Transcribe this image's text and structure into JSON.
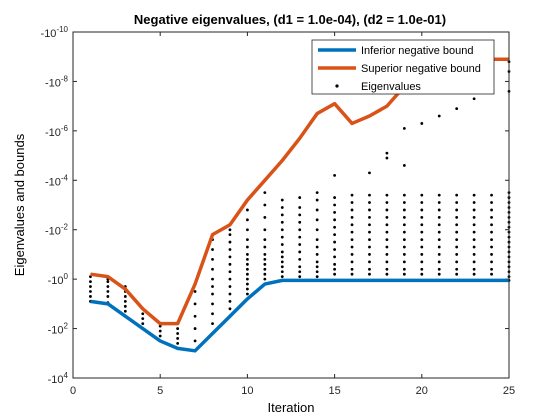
{
  "chart_data": {
    "type": "scatter",
    "title": "Negative eigenvalues, (d1 = 1.0e-04), (d2 = 1.0e-01)",
    "xlabel": "Iteration",
    "ylabel": "Eigenvalues and bounds",
    "xlim": [
      0,
      25
    ],
    "xticks": [
      0,
      5,
      10,
      15,
      20,
      25
    ],
    "xtick_labels": [
      "0",
      "5",
      "10",
      "15",
      "20",
      "25"
    ],
    "y_scale": "log10 of magnitude, negative values, axis reversed",
    "ylim_log10": [
      -10,
      4
    ],
    "yticks_log10": [
      -10,
      -8,
      -6,
      -4,
      -2,
      0,
      2,
      4
    ],
    "ytick_bases": [
      "-10",
      "-10",
      "-10",
      "-10",
      "-10",
      "-10",
      "-10",
      "-10"
    ],
    "ytick_exps": [
      "-10",
      "-8",
      "-6",
      "-4",
      "-2",
      "0",
      "2",
      "4"
    ],
    "legend_position": "top-right",
    "legend": {
      "inferior": "Inferior negative bound",
      "superior": "Superior negative bound",
      "eigen": "Eigenvalues"
    },
    "colors": {
      "inferior": "#0072BD",
      "superior": "#D95319",
      "eigen": "#000000",
      "axis": "#262626"
    },
    "x": [
      1,
      2,
      3,
      4,
      5,
      6,
      7,
      8,
      9,
      10,
      11,
      12,
      13,
      14,
      15,
      16,
      17,
      18,
      19,
      20,
      21,
      22,
      23,
      24,
      25
    ],
    "inferior_bound_log10": [
      0.9,
      1.0,
      1.5,
      2.0,
      2.5,
      2.8,
      2.9,
      2.2,
      1.5,
      0.8,
      0.2,
      0.05,
      0.05,
      0.05,
      0.05,
      0.05,
      0.05,
      0.05,
      0.05,
      0.05,
      0.05,
      0.05,
      0.05,
      0.05,
      0.05
    ],
    "superior_bound_log10": [
      -0.2,
      -0.1,
      0.4,
      1.2,
      1.8,
      1.8,
      0.2,
      -1.8,
      -2.2,
      -3.2,
      -4.0,
      -4.8,
      -5.7,
      -6.7,
      -7.1,
      -6.3,
      -6.6,
      -7.0,
      -7.8,
      -8.3,
      -8.8,
      -9.1,
      -9.1,
      -8.9,
      -8.9
    ],
    "eigenvalues_log10_by_iteration": [
      [
        0.9,
        0.7,
        0.5,
        0.3,
        0.1,
        -0.1
      ],
      [
        0.95,
        0.7,
        0.5,
        0.3,
        0.1,
        0.0,
        -0.1
      ],
      [
        1.5,
        1.3,
        1.1,
        0.9,
        0.7,
        0.5,
        0.3
      ],
      [
        2.0,
        1.8,
        1.6,
        1.4,
        1.2
      ],
      [
        2.5,
        2.3,
        2.1,
        1.9,
        1.8
      ],
      [
        2.8,
        2.6,
        2.4,
        2.2,
        2.0,
        1.8
      ],
      [
        2.9,
        2.5,
        2.0,
        1.5,
        1.0,
        0.5,
        0.2
      ],
      [
        2.2,
        1.8,
        1.4,
        1.0,
        0.6,
        0.3,
        0.0,
        -0.4,
        -0.8,
        -1.2,
        -1.6
      ],
      [
        1.5,
        1.2,
        0.9,
        0.6,
        0.3,
        0.0,
        -0.3,
        -0.6,
        -0.9,
        -1.2,
        -1.5,
        -1.8,
        -2.0
      ],
      [
        0.8,
        0.6,
        0.4,
        0.2,
        0.0,
        -0.2,
        -0.4,
        -0.6,
        -0.8,
        -1.0,
        -1.3,
        -1.6,
        -2.0,
        -2.4,
        -2.8
      ],
      [
        0.2,
        0.0,
        -0.2,
        -0.4,
        -0.6,
        -0.8,
        -1.0,
        -1.3,
        -1.6,
        -2.0,
        -2.5,
        -3.0,
        -3.5
      ],
      [
        0.05,
        -0.1,
        -0.3,
        -0.5,
        -0.7,
        -0.9,
        -1.1,
        -1.4,
        -1.7,
        -2.0,
        -2.3,
        -2.6,
        -2.9,
        -3.2
      ],
      [
        0.05,
        -0.1,
        -0.3,
        -0.5,
        -0.8,
        -1.1,
        -1.4,
        -1.7,
        -2.0,
        -2.3,
        -2.6,
        -2.9,
        -3.3
      ],
      [
        0.05,
        -0.1,
        -0.3,
        -0.5,
        -0.7,
        -1.0,
        -1.3,
        -1.6,
        -2.0,
        -2.4,
        -2.8,
        -3.2,
        -3.5
      ],
      [
        0.05,
        -0.2,
        -0.4,
        -0.6,
        -0.9,
        -1.2,
        -1.5,
        -1.8,
        -2.1,
        -2.4,
        -2.7,
        -3.0,
        -3.3,
        -4.2
      ],
      [
        0.05,
        -0.2,
        -0.4,
        -0.7,
        -1.0,
        -1.3,
        -1.6,
        -1.9,
        -2.2,
        -2.5,
        -2.8,
        -3.1,
        -3.4
      ],
      [
        0.05,
        -0.2,
        -0.4,
        -0.7,
        -1.0,
        -1.3,
        -1.6,
        -1.9,
        -2.2,
        -2.5,
        -2.8,
        -3.1,
        -3.4,
        -4.3
      ],
      [
        0.05,
        -0.2,
        -0.4,
        -0.7,
        -1.0,
        -1.3,
        -1.6,
        -1.9,
        -2.2,
        -2.5,
        -2.8,
        -3.1,
        -3.4,
        -4.9,
        -5.1
      ],
      [
        0.05,
        -0.2,
        -0.4,
        -0.7,
        -1.0,
        -1.3,
        -1.6,
        -1.9,
        -2.2,
        -2.5,
        -2.8,
        -3.1,
        -3.4,
        -4.6,
        -6.1
      ],
      [
        0.05,
        -0.2,
        -0.4,
        -0.7,
        -1.0,
        -1.3,
        -1.6,
        -1.9,
        -2.2,
        -2.5,
        -2.8,
        -3.1,
        -3.4,
        -6.3
      ],
      [
        0.05,
        -0.2,
        -0.4,
        -0.7,
        -1.0,
        -1.3,
        -1.6,
        -1.9,
        -2.2,
        -2.5,
        -2.8,
        -3.1,
        -3.4,
        -6.6
      ],
      [
        0.05,
        -0.2,
        -0.4,
        -0.7,
        -1.0,
        -1.3,
        -1.6,
        -1.9,
        -2.2,
        -2.5,
        -2.8,
        -3.1,
        -3.4,
        -6.9
      ],
      [
        0.05,
        -0.2,
        -0.4,
        -0.7,
        -1.0,
        -1.3,
        -1.6,
        -1.9,
        -2.2,
        -2.5,
        -2.8,
        -3.1,
        -3.4,
        -7.3,
        -8.9
      ],
      [
        0.05,
        -0.2,
        -0.4,
        -0.7,
        -1.0,
        -1.3,
        -1.6,
        -1.9,
        -2.2,
        -2.5,
        -2.8,
        -3.1,
        -3.4,
        -8.2
      ],
      [
        0.05,
        -0.1,
        -0.3,
        -0.5,
        -0.7,
        -0.9,
        -1.1,
        -1.3,
        -1.5,
        -1.7,
        -1.9,
        -2.1,
        -2.3,
        -2.5,
        -2.7,
        -2.9,
        -3.1,
        -3.3,
        -3.5,
        -7.6,
        -8.4,
        -8.8
      ]
    ]
  }
}
